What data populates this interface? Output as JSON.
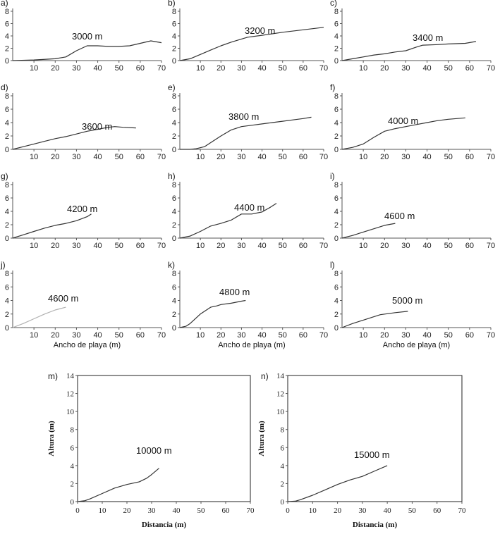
{
  "chart_data": [
    {
      "id": "a",
      "panel_label": "a)",
      "type": "line",
      "curve_label": "3000 m",
      "xlim": [
        0,
        70
      ],
      "ylim": [
        0,
        8
      ],
      "xticks": [
        10,
        20,
        30,
        40,
        50,
        60,
        70
      ],
      "yticks": [
        0,
        2,
        4,
        6,
        8
      ],
      "xlabel": "",
      "ylabel": "",
      "x": [
        0,
        10,
        20,
        25,
        30,
        35,
        40,
        45,
        50,
        55,
        60,
        65,
        70
      ],
      "y": [
        0,
        0.1,
        0.3,
        0.6,
        1.6,
        2.4,
        2.4,
        2.3,
        2.3,
        2.4,
        2.8,
        3.2,
        2.9
      ]
    },
    {
      "id": "b",
      "panel_label": "b)",
      "type": "line",
      "curve_label": "3200 m",
      "xlim": [
        0,
        70
      ],
      "ylim": [
        0,
        8
      ],
      "xticks": [
        10,
        20,
        30,
        40,
        50,
        60,
        70
      ],
      "yticks": [
        0,
        2,
        4,
        6,
        8
      ],
      "xlabel": "",
      "ylabel": "",
      "x": [
        0,
        5,
        10,
        15,
        20,
        25,
        30,
        33,
        40,
        50,
        60,
        70
      ],
      "y": [
        0,
        0.3,
        1.0,
        1.7,
        2.4,
        3.0,
        3.5,
        3.8,
        4.1,
        4.6,
        5.0,
        5.4
      ]
    },
    {
      "id": "c",
      "panel_label": "c)",
      "type": "line",
      "curve_label": "3400 m",
      "xlim": [
        0,
        70
      ],
      "ylim": [
        0,
        8
      ],
      "xticks": [
        10,
        20,
        30,
        40,
        50,
        60,
        70
      ],
      "yticks": [
        0,
        2,
        4,
        6,
        8
      ],
      "xlabel": "",
      "ylabel": "",
      "x": [
        0,
        5,
        10,
        15,
        20,
        25,
        30,
        35,
        38,
        45,
        50,
        58,
        63
      ],
      "y": [
        0,
        0.3,
        0.6,
        0.9,
        1.1,
        1.4,
        1.6,
        2.2,
        2.5,
        2.6,
        2.7,
        2.8,
        3.1
      ]
    },
    {
      "id": "d",
      "panel_label": "d)",
      "type": "line",
      "curve_label": "3600 m",
      "xlim": [
        0,
        70
      ],
      "ylim": [
        0,
        8
      ],
      "xticks": [
        10,
        20,
        30,
        40,
        50,
        60,
        70
      ],
      "yticks": [
        0,
        2,
        4,
        6,
        8
      ],
      "xlabel": "",
      "ylabel": "",
      "x": [
        0,
        5,
        10,
        15,
        20,
        25,
        30,
        35,
        40,
        45,
        48,
        52,
        58
      ],
      "y": [
        0,
        0.4,
        0.8,
        1.2,
        1.6,
        1.9,
        2.3,
        2.7,
        3.0,
        3.3,
        3.4,
        3.3,
        3.2
      ]
    },
    {
      "id": "e",
      "panel_label": "e)",
      "type": "line",
      "curve_label": "3800 m",
      "xlim": [
        0,
        70
      ],
      "ylim": [
        0,
        8
      ],
      "xticks": [
        10,
        20,
        30,
        40,
        50,
        60,
        70
      ],
      "yticks": [
        0,
        2,
        4,
        6,
        8
      ],
      "xlabel": "",
      "ylabel": "",
      "x": [
        0,
        5,
        8,
        12,
        15,
        20,
        25,
        30,
        35,
        40,
        45,
        50,
        55,
        60,
        64
      ],
      "y": [
        0,
        0,
        0.1,
        0.4,
        1.0,
        2.0,
        2.9,
        3.4,
        3.6,
        3.8,
        4.0,
        4.2,
        4.4,
        4.6,
        4.8
      ]
    },
    {
      "id": "f",
      "panel_label": "f)",
      "type": "line",
      "curve_label": "4000 m",
      "xlim": [
        0,
        70
      ],
      "ylim": [
        0,
        8
      ],
      "xticks": [
        10,
        20,
        30,
        40,
        50,
        60,
        70
      ],
      "yticks": [
        0,
        2,
        4,
        6,
        8
      ],
      "xlabel": "",
      "ylabel": "",
      "x": [
        0,
        5,
        10,
        15,
        20,
        25,
        30,
        35,
        40,
        45,
        50,
        58
      ],
      "y": [
        0,
        0.3,
        0.8,
        1.8,
        2.7,
        3.1,
        3.4,
        3.7,
        4.0,
        4.3,
        4.5,
        4.7
      ]
    },
    {
      "id": "g",
      "panel_label": "g)",
      "type": "line",
      "curve_label": "4200 m",
      "xlim": [
        0,
        70
      ],
      "ylim": [
        0,
        8
      ],
      "xticks": [
        10,
        20,
        30,
        40,
        50,
        60,
        70
      ],
      "yticks": [
        0,
        2,
        4,
        6,
        8
      ],
      "xlabel": "",
      "ylabel": "",
      "x": [
        0,
        5,
        10,
        15,
        20,
        25,
        30,
        35,
        37
      ],
      "y": [
        0,
        0.5,
        1.0,
        1.5,
        1.9,
        2.2,
        2.6,
        3.2,
        3.6
      ]
    },
    {
      "id": "h",
      "panel_label": "h)",
      "type": "line",
      "curve_label": "4400 m",
      "xlim": [
        0,
        70
      ],
      "ylim": [
        0,
        8
      ],
      "xticks": [
        10,
        20,
        30,
        40,
        50,
        60,
        70
      ],
      "yticks": [
        0,
        2,
        4,
        6,
        8
      ],
      "xlabel": "",
      "ylabel": "",
      "x": [
        0,
        5,
        10,
        15,
        20,
        25,
        30,
        35,
        40,
        44,
        47
      ],
      "y": [
        0,
        0.3,
        1.0,
        1.8,
        2.2,
        2.7,
        3.6,
        3.6,
        3.9,
        4.6,
        5.2
      ]
    },
    {
      "id": "i",
      "panel_label": "i)",
      "type": "line",
      "curve_label": "4600 m",
      "xlim": [
        0,
        70
      ],
      "ylim": [
        0,
        8
      ],
      "xticks": [
        10,
        20,
        30,
        40,
        50,
        60,
        70
      ],
      "yticks": [
        0,
        2,
        4,
        6,
        8
      ],
      "xlabel": "",
      "ylabel": "",
      "x": [
        0,
        5,
        10,
        15,
        20,
        25
      ],
      "y": [
        0,
        0.4,
        0.9,
        1.4,
        1.9,
        2.2
      ]
    },
    {
      "id": "j",
      "panel_label": "j)",
      "type": "line",
      "curve_label": "4600 m",
      "xlim": [
        0,
        70
      ],
      "ylim": [
        0,
        8
      ],
      "xticks": [
        10,
        20,
        30,
        40,
        50,
        60,
        70
      ],
      "yticks": [
        0,
        2,
        4,
        6,
        8
      ],
      "xlabel": "Ancho de playa (m)",
      "ylabel": "",
      "line_color": "#b0b0b0",
      "x": [
        0,
        5,
        10,
        15,
        20,
        25
      ],
      "y": [
        0,
        0.6,
        1.3,
        2.0,
        2.6,
        3.0
      ]
    },
    {
      "id": "k",
      "panel_label": "k)",
      "type": "line",
      "curve_label": "4800 m",
      "xlim": [
        0,
        70
      ],
      "ylim": [
        0,
        8
      ],
      "xticks": [
        10,
        20,
        30,
        40,
        50,
        60,
        70
      ],
      "yticks": [
        0,
        2,
        4,
        6,
        8
      ],
      "xlabel": "Ancho de playa (m)",
      "ylabel": "",
      "x": [
        0,
        3,
        5,
        10,
        15,
        18,
        20,
        25,
        30,
        32
      ],
      "y": [
        0,
        0.2,
        0.6,
        2.0,
        3.0,
        3.2,
        3.4,
        3.6,
        3.9,
        4.0
      ]
    },
    {
      "id": "l",
      "panel_label": "l)",
      "type": "line",
      "curve_label": "5000 m",
      "xlim": [
        0,
        70
      ],
      "ylim": [
        0,
        8
      ],
      "xticks": [
        10,
        20,
        30,
        40,
        50,
        60,
        70
      ],
      "yticks": [
        0,
        2,
        4,
        6,
        8
      ],
      "xlabel": "Ancho de playa (m)",
      "ylabel": "",
      "x": [
        0,
        5,
        10,
        15,
        18,
        25,
        31
      ],
      "y": [
        0,
        0.6,
        1.1,
        1.6,
        1.9,
        2.2,
        2.4
      ]
    },
    {
      "id": "m",
      "panel_label": "m)",
      "type": "line",
      "curve_label": "10000 m",
      "xlim": [
        0,
        70
      ],
      "ylim": [
        0,
        14
      ],
      "xticks": [
        0,
        10,
        20,
        30,
        40,
        50,
        60,
        70
      ],
      "yticks": [
        0,
        2,
        4,
        6,
        8,
        10,
        12,
        14
      ],
      "xlabel": "Distancia (m)",
      "ylabel": "Altura (m)",
      "x": [
        0,
        3,
        5,
        10,
        15,
        20,
        25,
        28,
        30,
        33
      ],
      "y": [
        0,
        0.1,
        0.3,
        0.9,
        1.5,
        1.9,
        2.2,
        2.6,
        3.0,
        3.7
      ]
    },
    {
      "id": "n",
      "panel_label": "n)",
      "type": "line",
      "curve_label": "15000 m",
      "xlim": [
        0,
        70
      ],
      "ylim": [
        0,
        14
      ],
      "xticks": [
        0,
        10,
        20,
        30,
        40,
        50,
        60,
        70
      ],
      "yticks": [
        0,
        2,
        4,
        6,
        8,
        10,
        12,
        14
      ],
      "xlabel": "Distancia (m)",
      "ylabel": "Altura (m)",
      "x": [
        0,
        3,
        5,
        10,
        15,
        20,
        25,
        30,
        35,
        40
      ],
      "y": [
        0,
        0.05,
        0.2,
        0.7,
        1.3,
        1.9,
        2.4,
        2.8,
        3.4,
        4.0
      ]
    }
  ]
}
